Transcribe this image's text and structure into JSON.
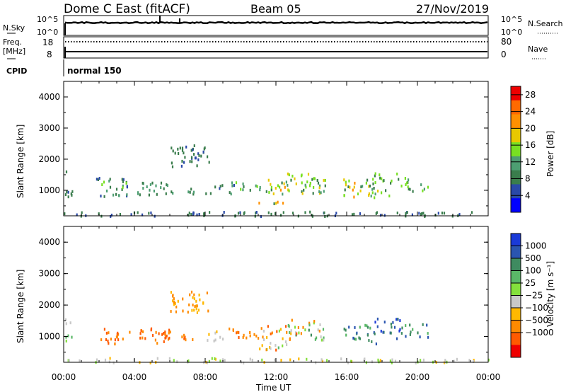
{
  "header": {
    "station": "Dome C East (fitACF)",
    "beam": "Beam 05",
    "date": "27/Nov/2019"
  },
  "top_panels": {
    "nsky_label": "N.Sky",
    "nsky_ticks": [
      "10^5",
      "10^0"
    ],
    "nsearch_label": "N.Search",
    "nsearch_ticks": [
      "10^5",
      "10^0"
    ],
    "freq_label_1": "Freq.",
    "freq_label_2": "[MHz]",
    "freq_ticks": [
      "18",
      "8"
    ],
    "nave_label": "Nave",
    "nave_ticks": [
      "80",
      "0"
    ],
    "cpid_label": "CPID",
    "cpid_value": "normal 150"
  },
  "colors": {
    "power_scale": [
      "#0000ff",
      "#2a49a8",
      "#3a7d4c",
      "#4d9e72",
      "#78e022",
      "#e8c800",
      "#ff9000",
      "#ff6a00",
      "#ee0000"
    ],
    "velocity_scale": [
      "#1a3ad8",
      "#2a55b0",
      "#3f8b60",
      "#5ab868",
      "#84e03c",
      "#c8c8c8",
      "#ffb800",
      "#ff8a00",
      "#ff5a00",
      "#ee0000"
    ]
  },
  "chart_data": [
    {
      "type": "heatmap",
      "name": "power",
      "xlabel": "",
      "ylabel": "Slant Range [km]",
      "ylim": [
        180,
        4500
      ],
      "y_ticks": [
        "1000",
        "2000",
        "3000",
        "4000"
      ],
      "colorbar_label": "Power [dB]",
      "colorbar_ticks": [
        "4",
        "8",
        "12",
        "16",
        "20",
        "24",
        "28"
      ],
      "colorbar_range": [
        0,
        30
      ],
      "clusters": [
        {
          "t": [
            0.0,
            0.6
          ],
          "r": [
            700,
            1100
          ],
          "v": [
            6,
            10
          ]
        },
        {
          "t": [
            0.0,
            0.4
          ],
          "r": [
            1450,
            1650
          ],
          "v": [
            5,
            8
          ]
        },
        {
          "t": [
            1.0,
            3.5
          ],
          "r": [
            1350,
            1450
          ],
          "v": [
            5,
            8
          ]
        },
        {
          "t": [
            2.0,
            3.7
          ],
          "r": [
            800,
            1350
          ],
          "v": [
            5,
            16
          ]
        },
        {
          "t": [
            4.0,
            6.0
          ],
          "r": [
            800,
            1300
          ],
          "v": [
            6,
            14
          ]
        },
        {
          "t": [
            6.0,
            7.6
          ],
          "r": [
            900,
            1100
          ],
          "v": [
            6,
            12
          ]
        },
        {
          "t": [
            6.0,
            8.2
          ],
          "r": [
            1800,
            2500
          ],
          "v": [
            6,
            9
          ]
        },
        {
          "t": [
            8.0,
            9.0
          ],
          "r": [
            900,
            1200
          ],
          "v": [
            6,
            10
          ]
        },
        {
          "t": [
            9.0,
            11.0
          ],
          "r": [
            900,
            1300
          ],
          "v": [
            6,
            16
          ]
        },
        {
          "t": [
            11.0,
            12.6
          ],
          "r": [
            600,
            1400
          ],
          "v": [
            8,
            22
          ]
        },
        {
          "t": [
            12.6,
            14.8
          ],
          "r": [
            900,
            1600
          ],
          "v": [
            7,
            20
          ]
        },
        {
          "t": [
            15.8,
            17.4
          ],
          "r": [
            800,
            1400
          ],
          "v": [
            7,
            22
          ]
        },
        {
          "t": [
            17.4,
            19.0
          ],
          "r": [
            800,
            1600
          ],
          "v": [
            6,
            18
          ]
        },
        {
          "t": [
            19.0,
            20.6
          ],
          "r": [
            1000,
            1450
          ],
          "v": [
            6,
            16
          ]
        },
        {
          "t": [
            0.0,
            24.0
          ],
          "r": [
            200,
            350
          ],
          "v": [
            5,
            10
          ]
        }
      ]
    },
    {
      "type": "heatmap",
      "name": "velocity",
      "xlabel": "Time UT",
      "ylabel": "Slant Range [km]",
      "ylim": [
        180,
        4500
      ],
      "x_ticks": [
        "00:00",
        "04:00",
        "08:00",
        "12:00",
        "16:00",
        "20:00",
        "00:00"
      ],
      "xlim_hours": [
        0,
        24
      ],
      "y_ticks": [
        "1000",
        "2000",
        "3000",
        "4000"
      ],
      "colorbar_label": "Velocity [m s⁻¹]",
      "colorbar_ticks": [
        "1000",
        "500",
        "100",
        "25",
        "−25",
        "−100",
        "−500",
        "−1000"
      ],
      "clusters": [
        {
          "t": [
            0.0,
            0.6
          ],
          "r": [
            700,
            1100
          ],
          "v": [
            3,
            4
          ]
        },
        {
          "t": [
            0.0,
            0.5
          ],
          "r": [
            1450,
            1650
          ],
          "v": [
            5,
            5
          ]
        },
        {
          "t": [
            2.0,
            3.7
          ],
          "r": [
            800,
            1350
          ],
          "v": [
            7,
            8
          ]
        },
        {
          "t": [
            4.0,
            6.0
          ],
          "r": [
            800,
            1300
          ],
          "v": [
            7,
            8
          ]
        },
        {
          "t": [
            6.0,
            7.6
          ],
          "r": [
            900,
            1100
          ],
          "v": [
            7,
            8
          ]
        },
        {
          "t": [
            6.0,
            8.2
          ],
          "r": [
            1800,
            2500
          ],
          "v": [
            6,
            7
          ]
        },
        {
          "t": [
            8.0,
            9.0
          ],
          "r": [
            900,
            1200
          ],
          "v": [
            5,
            6
          ]
        },
        {
          "t": [
            9.0,
            11.0
          ],
          "r": [
            900,
            1300
          ],
          "v": [
            7,
            8
          ]
        },
        {
          "t": [
            11.0,
            12.6
          ],
          "r": [
            600,
            1400
          ],
          "v": [
            3,
            8
          ]
        },
        {
          "t": [
            12.6,
            14.8
          ],
          "r": [
            900,
            1600
          ],
          "v": [
            2,
            8
          ]
        },
        {
          "t": [
            15.8,
            17.4
          ],
          "r": [
            800,
            1400
          ],
          "v": [
            1,
            3
          ]
        },
        {
          "t": [
            17.4,
            19.0
          ],
          "r": [
            800,
            1600
          ],
          "v": [
            0,
            2
          ]
        },
        {
          "t": [
            19.0,
            20.6
          ],
          "r": [
            1000,
            1450
          ],
          "v": [
            1,
            3
          ]
        },
        {
          "t": [
            0.0,
            24.0
          ],
          "r": [
            200,
            350
          ],
          "v": [
            4,
            6
          ]
        }
      ]
    }
  ]
}
